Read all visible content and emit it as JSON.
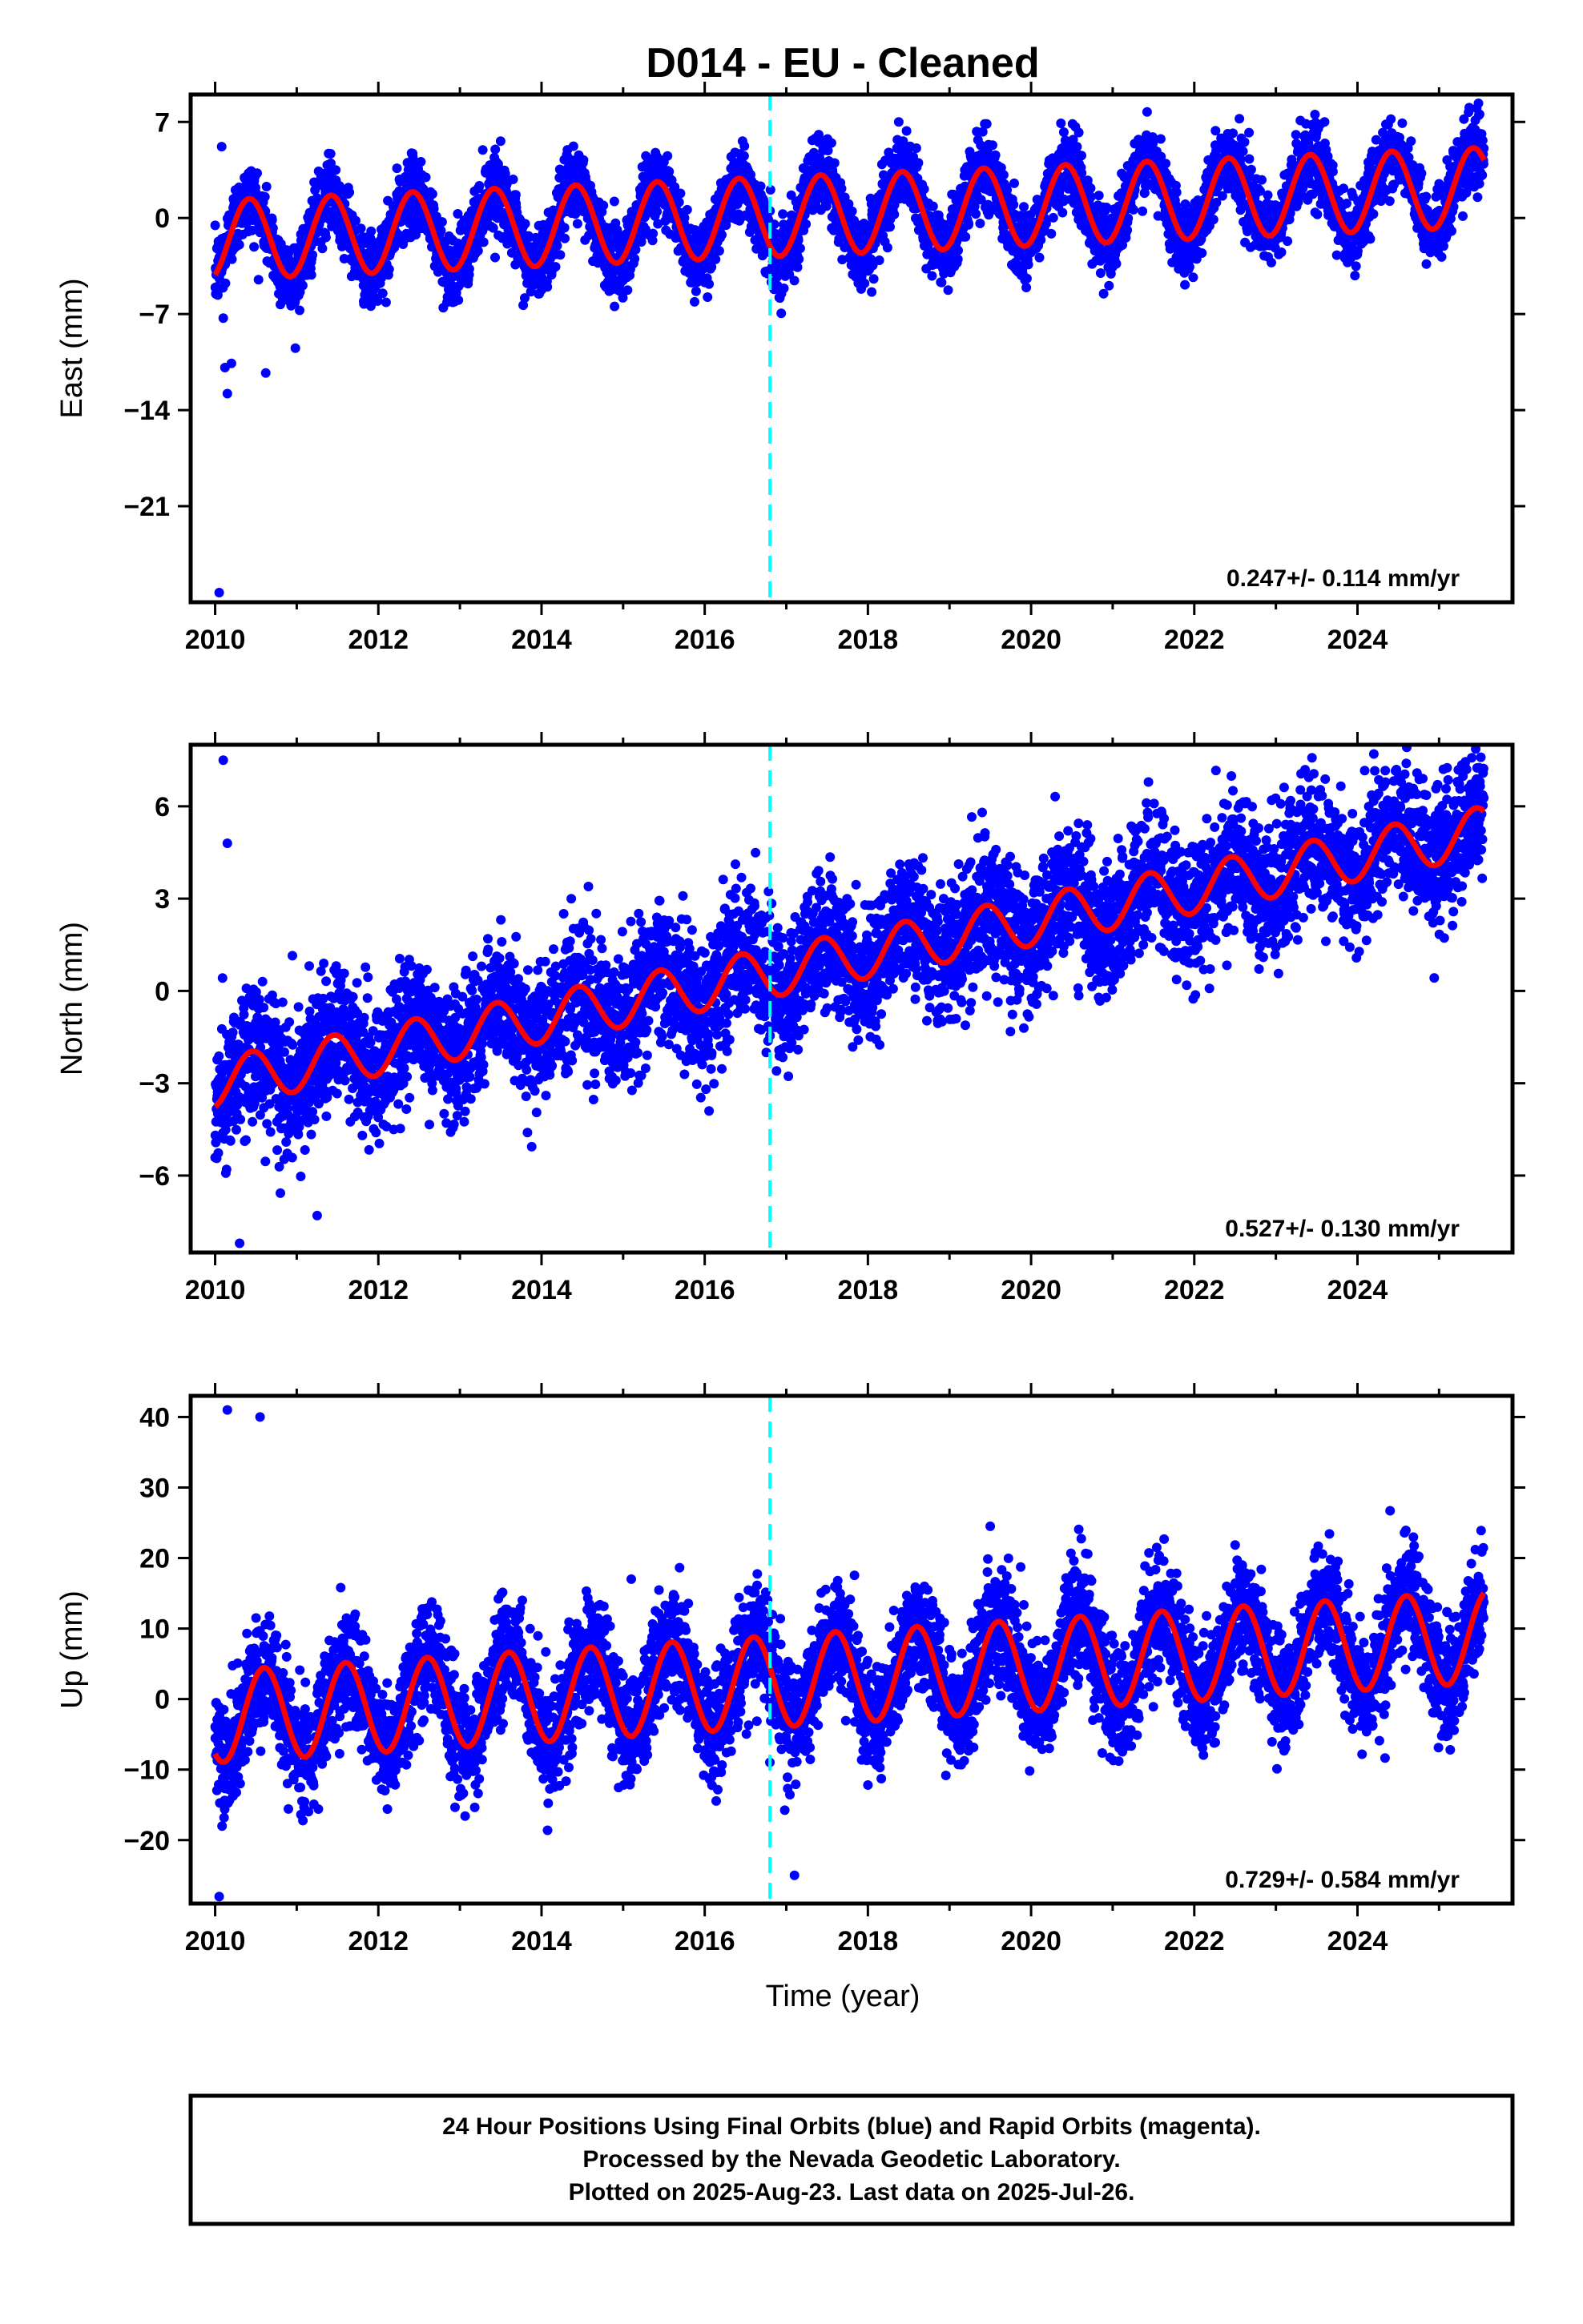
{
  "figure": {
    "title": "D014  - EU - Cleaned",
    "xlabel": "Time (year)"
  },
  "footer": {
    "line1": "24 Hour Positions Using Final Orbits (blue) and Rapid Orbits (magenta).",
    "line2": "Processed by the Nevada Geodetic Laboratory.",
    "line3": "Plotted on 2025-Aug-23. Last data on 2025-Jul-26."
  },
  "colors": {
    "points": "#0000ff",
    "model": "#ff0000",
    "event_line": "#00ffff"
  },
  "chart_data": [
    {
      "type": "scatter",
      "ylabel": "East (mm)",
      "rate_text": "0.247+/- 0.114 mm/yr",
      "xlim": [
        2009.7,
        2025.9
      ],
      "ylim": [
        -28,
        9
      ],
      "yticks": [
        7,
        0,
        -7,
        -14,
        -21
      ],
      "xticks": [
        2010,
        2012,
        2014,
        2016,
        2018,
        2020,
        2022,
        2024
      ],
      "event_x": 2016.8,
      "model": {
        "offset_start": -1.6,
        "rate": 0.247,
        "amplitude": 2.9,
        "peak_phase": 0.42,
        "start_x": 2010.0,
        "end_x": 2025.55
      },
      "scatter": {
        "start_x": 2010.0,
        "end_x": 2025.55,
        "noise": 1.3
      },
      "outliers": [
        [
          2010.05,
          -27.3
        ],
        [
          2010.12,
          -10.9
        ],
        [
          2010.2,
          -10.6
        ],
        [
          2010.15,
          -12.8
        ],
        [
          2010.62,
          -11.3
        ],
        [
          2010.08,
          5.2
        ],
        [
          2010.1,
          -7.3
        ]
      ]
    },
    {
      "type": "scatter",
      "ylabel": "North (mm)",
      "rate_text": "0.527+/- 0.130 mm/yr",
      "xlim": [
        2009.7,
        2025.9
      ],
      "ylim": [
        -8.5,
        8
      ],
      "yticks": [
        6,
        3,
        0,
        -3,
        -6
      ],
      "xticks": [
        2010,
        2012,
        2014,
        2016,
        2018,
        2020,
        2022,
        2024
      ],
      "event_x": 2016.8,
      "model": {
        "offset_start": -3.0,
        "rate": 0.527,
        "amplitude": 0.8,
        "peak_phase": 0.45,
        "start_x": 2010.0,
        "end_x": 2025.55
      },
      "scatter": {
        "start_x": 2010.0,
        "end_x": 2025.55,
        "noise": 1.1
      },
      "outliers": [
        [
          2010.1,
          7.5
        ],
        [
          2010.3,
          -8.2
        ],
        [
          2011.25,
          -7.3
        ],
        [
          2010.15,
          4.8
        ],
        [
          2019.4,
          5.8
        ],
        [
          2024.2,
          7.7
        ],
        [
          2025.5,
          6.8
        ],
        [
          2024.8,
          6.9
        ]
      ]
    },
    {
      "type": "scatter",
      "ylabel": "Up (mm)",
      "rate_text": "0.729+/- 0.584 mm/yr",
      "xlim": [
        2009.7,
        2025.9
      ],
      "ylim": [
        -29,
        43
      ],
      "yticks": [
        40,
        30,
        20,
        10,
        0,
        -10,
        -20
      ],
      "xticks": [
        2010,
        2012,
        2014,
        2016,
        2018,
        2020,
        2022,
        2024
      ],
      "event_x": 2016.8,
      "model": {
        "offset_start": -2.5,
        "rate": 0.729,
        "amplitude": 6.5,
        "peak_phase": 0.6,
        "start_x": 2010.0,
        "end_x": 2025.55
      },
      "scatter": {
        "start_x": 2010.0,
        "end_x": 2025.55,
        "noise": 4.0
      },
      "outliers": [
        [
          2010.05,
          -28
        ],
        [
          2010.15,
          41
        ],
        [
          2010.55,
          40
        ],
        [
          2015.1,
          17
        ],
        [
          2019.5,
          24.5
        ],
        [
          2024.4,
          26.7
        ],
        [
          2017.1,
          -25
        ]
      ]
    }
  ]
}
